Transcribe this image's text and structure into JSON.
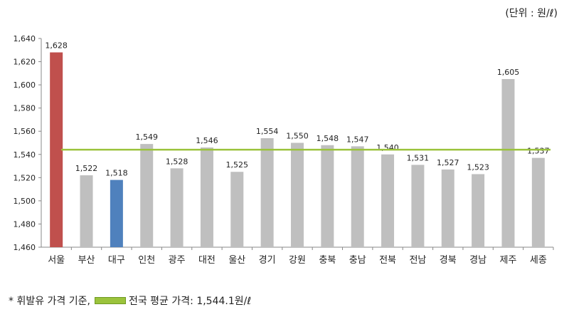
{
  "unit_label": "(단위 : 원/ℓ)",
  "footer": {
    "note": "* 휘발유 가격 기준,",
    "avg_label": "전국 평균 가격: 1,544.1원/ℓ"
  },
  "colors": {
    "default_bar": "#bfbfbf",
    "highlight_high": "#c0504d",
    "highlight_low": "#4f81bd",
    "avg_line": "#9bc33c",
    "axis": "#888888"
  },
  "chart_data": {
    "type": "bar",
    "title": "",
    "xlabel": "",
    "ylabel": "",
    "categories": [
      "서울",
      "부산",
      "대구",
      "인천",
      "광주",
      "대전",
      "울산",
      "경기",
      "강원",
      "충북",
      "충남",
      "전북",
      "전남",
      "경북",
      "경남",
      "제주",
      "세종"
    ],
    "values": [
      1628,
      1522,
      1518,
      1549,
      1528,
      1546,
      1525,
      1554,
      1550,
      1548,
      1547,
      1540,
      1531,
      1527,
      1523,
      1605,
      1537
    ],
    "value_labels": [
      "1,628",
      "1,522",
      "1,518",
      "1,549",
      "1,528",
      "1,546",
      "1,525",
      "1,554",
      "1,550",
      "1,548",
      "1,547",
      "1,540",
      "1,531",
      "1,527",
      "1,523",
      "1,605",
      "1,537"
    ],
    "bar_colors": [
      "#c0504d",
      "#bfbfbf",
      "#4f81bd",
      "#bfbfbf",
      "#bfbfbf",
      "#bfbfbf",
      "#bfbfbf",
      "#bfbfbf",
      "#bfbfbf",
      "#bfbfbf",
      "#bfbfbf",
      "#bfbfbf",
      "#bfbfbf",
      "#bfbfbf",
      "#bfbfbf",
      "#bfbfbf",
      "#bfbfbf"
    ],
    "ylim": [
      1460,
      1640
    ],
    "yticks": [
      1460,
      1480,
      1500,
      1520,
      1540,
      1560,
      1580,
      1600,
      1620,
      1640
    ],
    "ytick_labels": [
      "1,460",
      "1,480",
      "1,500",
      "1,520",
      "1,540",
      "1,560",
      "1,580",
      "1,600",
      "1,620",
      "1,640"
    ],
    "reference_line": {
      "value": 1544.1
    },
    "grid": false,
    "legend": "bottom-left"
  }
}
